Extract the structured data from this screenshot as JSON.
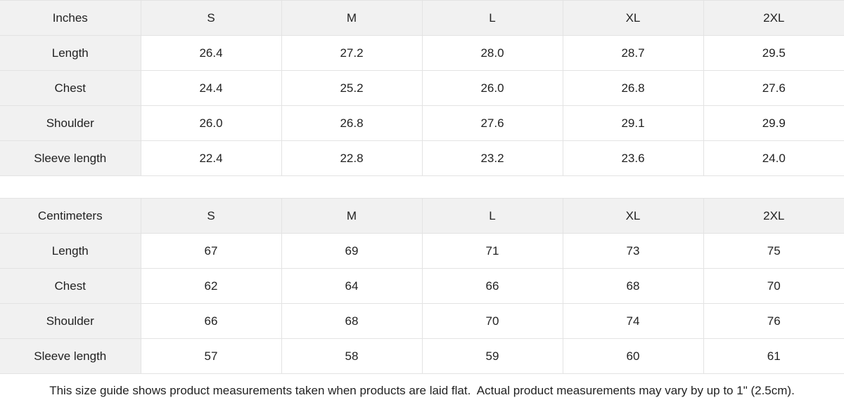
{
  "tables": [
    {
      "unit_label": "Inches",
      "sizes": [
        "S",
        "M",
        "L",
        "XL",
        "2XL"
      ],
      "rows": [
        {
          "label": "Length",
          "values": [
            "26.4",
            "27.2",
            "28.0",
            "28.7",
            "29.5"
          ]
        },
        {
          "label": "Chest",
          "values": [
            "24.4",
            "25.2",
            "26.0",
            "26.8",
            "27.6"
          ]
        },
        {
          "label": "Shoulder",
          "values": [
            "26.0",
            "26.8",
            "27.6",
            "29.1",
            "29.9"
          ]
        },
        {
          "label": "Sleeve length",
          "values": [
            "22.4",
            "22.8",
            "23.2",
            "23.6",
            "24.0"
          ]
        }
      ]
    },
    {
      "unit_label": "Centimeters",
      "sizes": [
        "S",
        "M",
        "L",
        "XL",
        "2XL"
      ],
      "rows": [
        {
          "label": "Length",
          "values": [
            "67",
            "69",
            "71",
            "73",
            "75"
          ]
        },
        {
          "label": "Chest",
          "values": [
            "62",
            "64",
            "66",
            "68",
            "70"
          ]
        },
        {
          "label": "Shoulder",
          "values": [
            "66",
            "68",
            "70",
            "74",
            "76"
          ]
        },
        {
          "label": "Sleeve length",
          "values": [
            "57",
            "58",
            "59",
            "60",
            "61"
          ]
        }
      ]
    }
  ],
  "footer": {
    "note": "This size guide shows product measurements taken when products are laid flat.  Actual product measurements may vary by up to 1\" (2.5cm)."
  },
  "colors": {
    "header_bg": "#f1f1f1",
    "cell_bg": "#ffffff",
    "border": "#e3e3e3",
    "text": "#222222"
  }
}
